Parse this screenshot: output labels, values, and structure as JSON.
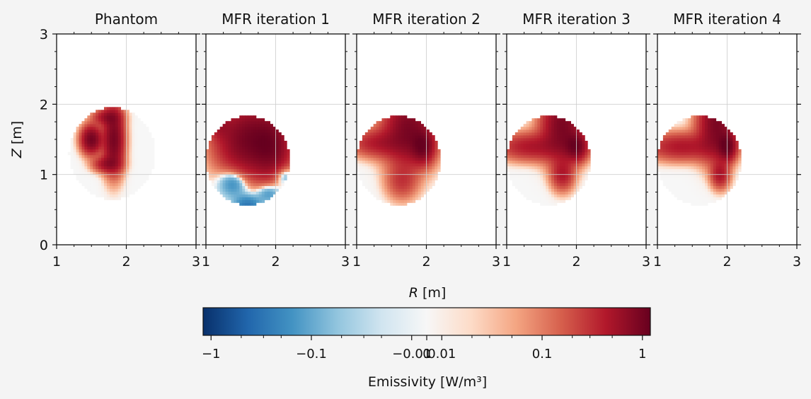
{
  "figure": {
    "shared_xlabel_var": "R",
    "shared_xlabel_unit": " [m]",
    "shared_ylabel_var": "Z",
    "shared_ylabel_unit": " [m]"
  },
  "chart_data": [
    {
      "type": "heatmap",
      "title": "Phantom",
      "xlim": [
        1,
        3
      ],
      "ylim": [
        0,
        3
      ],
      "x_ticks": [
        "1",
        "2",
        "3"
      ],
      "y_ticks": [
        "0",
        "1",
        "2",
        "3"
      ],
      "grid": true,
      "domain": {
        "center": [
          1.8,
          1.2
        ],
        "radius": 0.62
      },
      "blobs": [
        {
          "r": 1.5,
          "z": 1.5,
          "sr": 0.09,
          "sz": 0.12,
          "a": 1.0
        },
        {
          "r": 1.82,
          "z": 1.5,
          "sr": 0.09,
          "sz": 0.28,
          "a": 0.95
        },
        {
          "r": 1.72,
          "z": 1.82,
          "sr": 0.12,
          "sz": 0.07,
          "a": 0.5
        },
        {
          "r": 1.72,
          "z": 1.15,
          "sr": 0.12,
          "sz": 0.07,
          "a": 0.5
        }
      ]
    },
    {
      "type": "heatmap",
      "title": "MFR iteration 1",
      "xlim": [
        1,
        3
      ],
      "ylim": [
        0,
        3
      ],
      "x_ticks": [
        "1",
        "2",
        "3"
      ],
      "y_ticks": [
        "0",
        "1",
        "2",
        "3"
      ],
      "grid": true,
      "domain": {
        "center": [
          1.6,
          1.1
        ],
        "radius": 0.6
      },
      "blobs": [
        {
          "r": 1.6,
          "z": 1.5,
          "sr": 0.28,
          "sz": 0.32,
          "a": 0.95
        },
        {
          "r": 1.95,
          "z": 1.4,
          "sr": 0.18,
          "sz": 0.3,
          "a": 0.7
        },
        {
          "r": 1.4,
          "z": 0.9,
          "sr": 0.14,
          "sz": 0.14,
          "a": -0.25
        },
        {
          "r": 1.6,
          "z": 0.55,
          "sr": 0.12,
          "sz": 0.1,
          "a": -0.3
        },
        {
          "r": 1.9,
          "z": 0.75,
          "sr": 0.12,
          "sz": 0.1,
          "a": -0.2
        },
        {
          "r": 2.1,
          "z": 1.0,
          "sr": 0.1,
          "sz": 0.1,
          "a": -0.25
        },
        {
          "r": 1.55,
          "z": 2.3,
          "sr": 0.12,
          "sz": 0.1,
          "a": -0.2
        },
        {
          "r": 2.2,
          "z": 1.9,
          "sr": 0.1,
          "sz": 0.1,
          "a": -0.15
        },
        {
          "r": 1.2,
          "z": 1.7,
          "sr": 0.1,
          "sz": 0.12,
          "a": 0.3
        }
      ]
    },
    {
      "type": "heatmap",
      "title": "MFR iteration 2",
      "xlim": [
        1,
        3
      ],
      "ylim": [
        0,
        3
      ],
      "x_ticks": [
        "1",
        "2",
        "3"
      ],
      "y_ticks": [
        "0",
        "1",
        "2",
        "3"
      ],
      "grid": true,
      "domain": {
        "center": [
          1.6,
          1.1
        ],
        "radius": 0.6
      },
      "blobs": [
        {
          "r": 1.75,
          "z": 1.65,
          "sr": 0.22,
          "sz": 0.32,
          "a": 0.9
        },
        {
          "r": 1.95,
          "z": 1.4,
          "sr": 0.1,
          "sz": 0.14,
          "a": 0.8
        },
        {
          "r": 1.3,
          "z": 1.45,
          "sr": 0.25,
          "sz": 0.12,
          "a": 0.4
        },
        {
          "r": 1.65,
          "z": 0.9,
          "sr": 0.14,
          "sz": 0.16,
          "a": 0.25
        }
      ]
    },
    {
      "type": "heatmap",
      "title": "MFR iteration 3",
      "xlim": [
        1,
        3
      ],
      "ylim": [
        0,
        3
      ],
      "x_ticks": [
        "1",
        "2",
        "3"
      ],
      "y_ticks": [
        "0",
        "1",
        "2",
        "3"
      ],
      "grid": true,
      "domain": {
        "center": [
          1.6,
          1.1
        ],
        "radius": 0.6
      },
      "blobs": [
        {
          "r": 1.8,
          "z": 1.7,
          "sr": 0.18,
          "sz": 0.3,
          "a": 0.9
        },
        {
          "r": 2.0,
          "z": 1.4,
          "sr": 0.1,
          "sz": 0.12,
          "a": 0.85
        },
        {
          "r": 1.35,
          "z": 1.4,
          "sr": 0.3,
          "sz": 0.12,
          "a": 0.45
        },
        {
          "r": 1.8,
          "z": 1.0,
          "sr": 0.1,
          "sz": 0.14,
          "a": 0.4
        }
      ]
    },
    {
      "type": "heatmap",
      "title": "MFR iteration 4",
      "xlim": [
        1,
        3
      ],
      "ylim": [
        0,
        3
      ],
      "x_ticks": [
        "1",
        "2",
        "3"
      ],
      "y_ticks": [
        "0",
        "1",
        "2",
        "3"
      ],
      "grid": true,
      "domain": {
        "center": [
          1.6,
          1.1
        ],
        "radius": 0.6
      },
      "blobs": [
        {
          "r": 1.85,
          "z": 1.72,
          "sr": 0.16,
          "sz": 0.3,
          "a": 0.9
        },
        {
          "r": 2.0,
          "z": 1.4,
          "sr": 0.08,
          "sz": 0.12,
          "a": 0.9
        },
        {
          "r": 1.35,
          "z": 1.4,
          "sr": 0.32,
          "sz": 0.12,
          "a": 0.45
        },
        {
          "r": 1.9,
          "z": 1.0,
          "sr": 0.08,
          "sz": 0.12,
          "a": 0.45
        }
      ]
    }
  ],
  "colorbar": {
    "label": "Emissivity [W/m³]",
    "scale": "symlog",
    "range": [
      -1.2,
      1.2
    ],
    "ticks": [
      {
        "value": -1,
        "label": "−1"
      },
      {
        "value": -0.1,
        "label": "−0.1"
      },
      {
        "value": -0.01,
        "label": "−0.01"
      },
      {
        "value": 0,
        "label": "0"
      },
      {
        "value": 0.01,
        "label": "0.01"
      },
      {
        "value": 0.1,
        "label": "0.1"
      },
      {
        "value": 1,
        "label": "1"
      }
    ],
    "colormap": "RdBu_r",
    "colors": [
      "#08306b",
      "#2166ac",
      "#4393c3",
      "#92c5de",
      "#d1e5f0",
      "#f7f7f7",
      "#fddbc7",
      "#f4a582",
      "#d6604d",
      "#b2182b",
      "#67001f"
    ]
  }
}
